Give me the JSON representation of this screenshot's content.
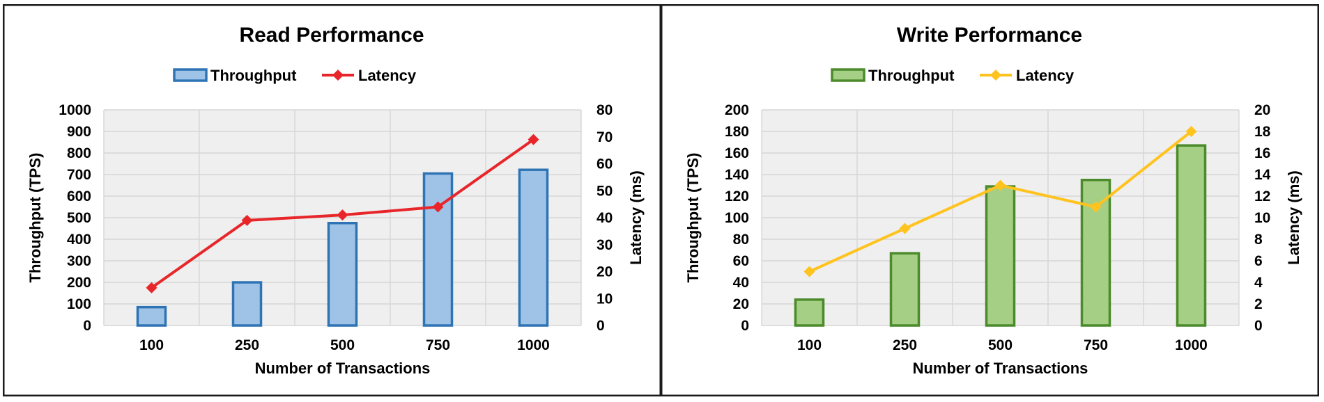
{
  "chart_data": [
    {
      "type": "bar",
      "title": "Read Performance",
      "categories": [
        "100",
        "250",
        "500",
        "750",
        "1000"
      ],
      "xlabel": "Number of Transactions",
      "ylabel": "Throughput (TPS)",
      "y2label": "Latency (ms)",
      "ylim": [
        0,
        1000
      ],
      "yticks": [
        0,
        100,
        200,
        300,
        400,
        500,
        600,
        700,
        800,
        900,
        1000
      ],
      "y2lim": [
        0,
        80
      ],
      "y2ticks": [
        0,
        10,
        20,
        30,
        40,
        50,
        60,
        70,
        80
      ],
      "grid": true,
      "legend_position": "top",
      "series": [
        {
          "name": "Throughput",
          "type": "bar",
          "axis": "left",
          "values": [
            85,
            200,
            475,
            705,
            722
          ],
          "fill": "#9fc3e7",
          "stroke": "#2e74b5"
        },
        {
          "name": "Latency",
          "type": "line",
          "axis": "right",
          "marker": "diamond",
          "values": [
            14,
            39,
            41,
            44,
            69
          ],
          "color": "#e8262a"
        }
      ]
    },
    {
      "type": "bar",
      "title": "Write Performance",
      "categories": [
        "100",
        "250",
        "500",
        "750",
        "1000"
      ],
      "xlabel": "Number of Transactions",
      "ylabel": "Throughput (TPS)",
      "y2label": "Latency (ms)",
      "ylim": [
        0,
        200
      ],
      "yticks": [
        0,
        20,
        40,
        60,
        80,
        100,
        120,
        140,
        160,
        180,
        200
      ],
      "y2lim": [
        0,
        20
      ],
      "y2ticks": [
        0,
        2,
        4,
        6,
        8,
        10,
        12,
        14,
        16,
        18,
        20
      ],
      "grid": true,
      "legend_position": "top",
      "series": [
        {
          "name": "Throughput",
          "type": "bar",
          "axis": "left",
          "values": [
            24,
            67,
            129,
            135,
            167
          ],
          "fill": "#a5cf85",
          "stroke": "#4b8b2b"
        },
        {
          "name": "Latency",
          "type": "line",
          "axis": "right",
          "marker": "diamond",
          "values": [
            5,
            9,
            13,
            11,
            18
          ],
          "color": "#ffc31f"
        }
      ]
    }
  ]
}
